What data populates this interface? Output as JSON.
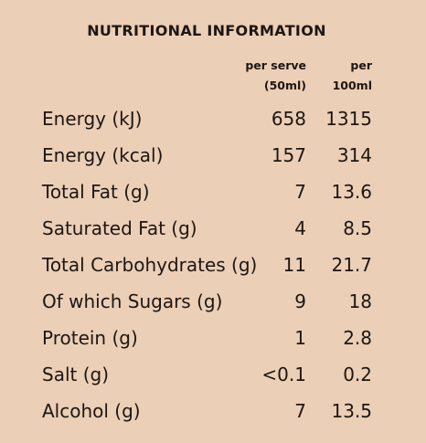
{
  "title": "NUTRITIONAL INFORMATION",
  "columns": {
    "per_serve": {
      "line1": "per serve",
      "line2": "(50ml)"
    },
    "per_100ml": {
      "line1": "per",
      "line2": "100ml"
    }
  },
  "rows": [
    {
      "label": "Energy (kJ)",
      "per_serve": "658",
      "per_100ml": "1315"
    },
    {
      "label": "Energy (kcal)",
      "per_serve": "157",
      "per_100ml": "314"
    },
    {
      "label": "Total Fat (g)",
      "per_serve": "7",
      "per_100ml": "13.6"
    },
    {
      "label": "Saturated Fat (g)",
      "per_serve": "4",
      "per_100ml": "8.5"
    },
    {
      "label": "Total Carbohydrates (g)",
      "per_serve": "11",
      "per_100ml": "21.7"
    },
    {
      "label": "Of which Sugars (g)",
      "per_serve": "9",
      "per_100ml": "18"
    },
    {
      "label": "Protein (g)",
      "per_serve": "1",
      "per_100ml": "2.8"
    },
    {
      "label": "Salt (g)",
      "per_serve": "<0.1",
      "per_100ml": "0.2"
    },
    {
      "label": "Alcohol (g)",
      "per_serve": "7",
      "per_100ml": "13.5"
    }
  ],
  "colors": {
    "background": "#ebcfb6",
    "text": "#1e1612"
  }
}
